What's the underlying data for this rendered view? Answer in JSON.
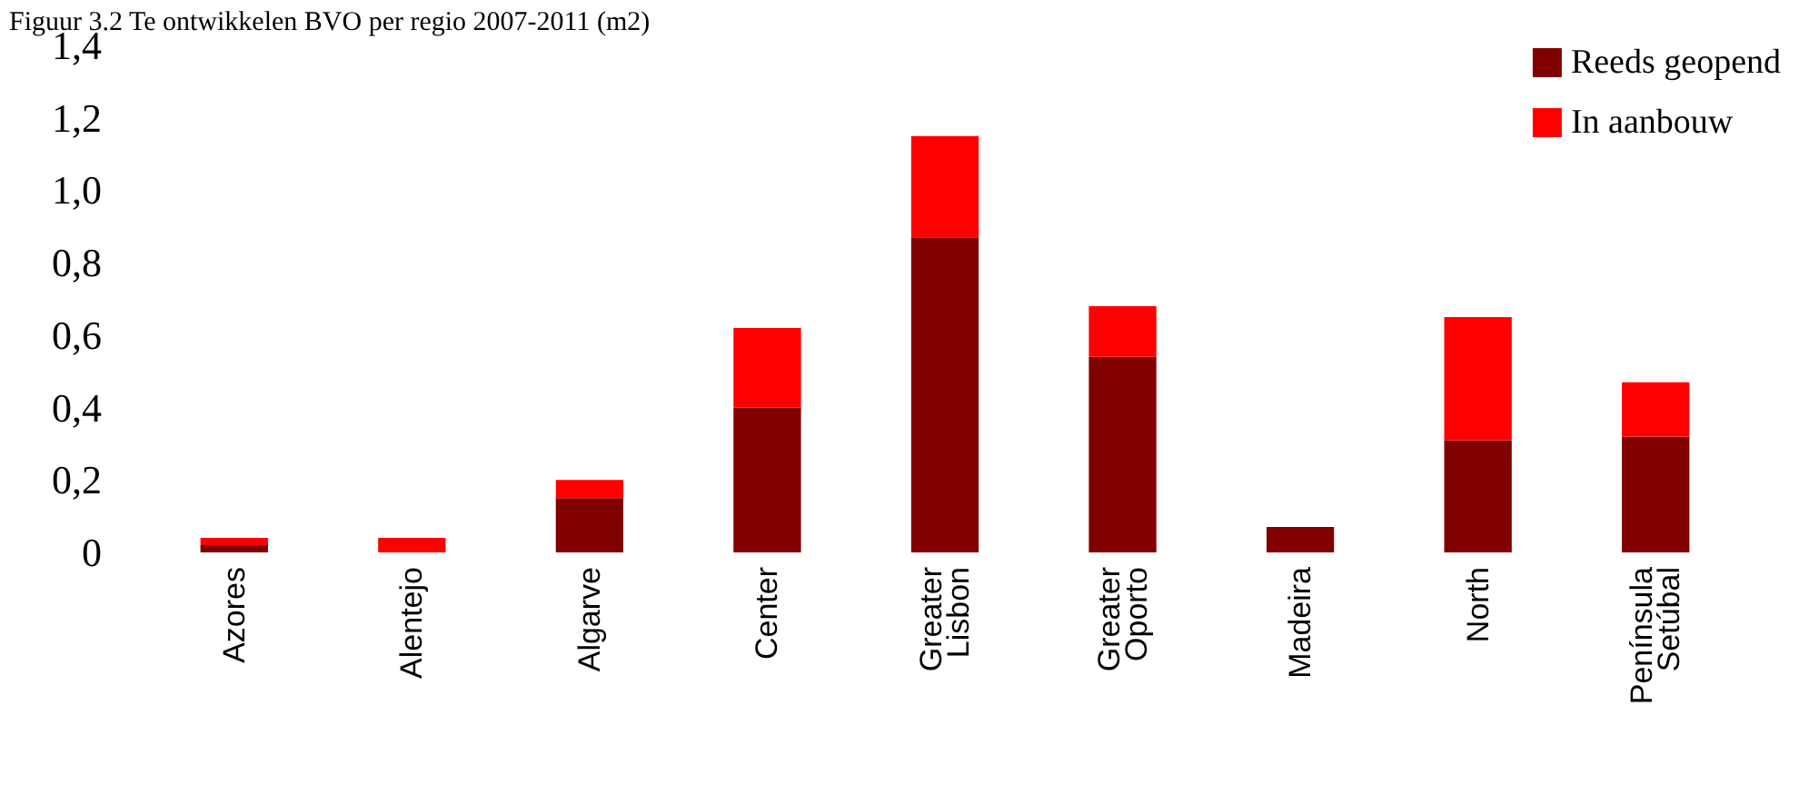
{
  "chart_data": {
    "type": "bar",
    "title": "Figuur 3.2 Te ontwikkelen BVO per regio 2007-2011 (m2)",
    "categories": [
      "Azores",
      "Alentejo",
      "Algarve",
      "Center",
      "Greater Lisbon",
      "Greater Oporto",
      "Madeira",
      "North",
      "Península Setúbal"
    ],
    "series": [
      {
        "name": "Reeds geopend",
        "color": "#800000",
        "values": [
          0.02,
          0,
          0.15,
          0.4,
          0.87,
          0.54,
          0.07,
          0.31,
          0.32
        ]
      },
      {
        "name": "In aanbouw",
        "color": "#ff0000",
        "values": [
          0.02,
          0.04,
          0.05,
          0.22,
          0.28,
          0.14,
          0,
          0.34,
          0.15
        ]
      }
    ],
    "stacked": true,
    "ylim": [
      0,
      1.4
    ],
    "yticks": [
      0,
      {
        "value": 0.2,
        "label": "0,2"
      },
      {
        "value": 0.4,
        "label": "0,4"
      },
      {
        "value": 0.6,
        "label": "0,6"
      },
      {
        "value": 0.8,
        "label": "0,8"
      },
      {
        "value": 1.0,
        "label": "1,0"
      },
      {
        "value": 1.2,
        "label": "1,2"
      },
      {
        "value": 1.4,
        "label": "1,4"
      }
    ],
    "grid": false,
    "legend": "top right"
  }
}
